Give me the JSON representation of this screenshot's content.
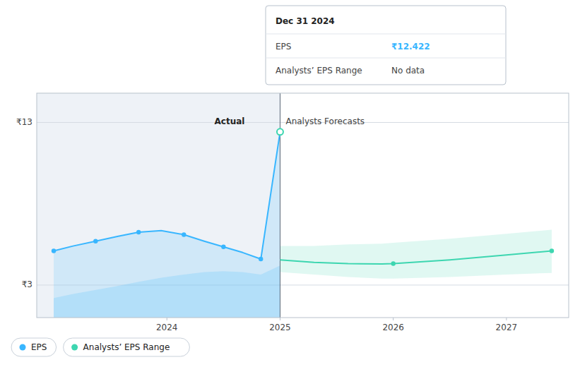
{
  "chart_data": {
    "type": "line",
    "xlim": [
      2022.85,
      2027.55
    ],
    "xticks": [
      2024,
      2025,
      2026,
      2027
    ],
    "ylim": [
      1.0,
      14.8
    ],
    "yticks": [
      {
        "value": 3,
        "label": "₹3"
      },
      {
        "value": 13,
        "label": "₹13"
      }
    ],
    "grid": true,
    "legend": "bottom",
    "divider_x": 2025.0,
    "annotations": [
      "Actual",
      "Analysts Forecasts"
    ],
    "peak": {
      "x": 2025.0,
      "value": 12.422
    },
    "tooltip": {
      "title": "Dec 31 2024",
      "rows": [
        {
          "label": "EPS",
          "value": "₹12.422"
        },
        {
          "label": "Analysts’ EPS Range",
          "value": "No data"
        }
      ]
    },
    "series": [
      {
        "name": "EPS",
        "color": "#38b6ff",
        "x": [
          2023.0,
          2023.17,
          2023.37,
          2023.57,
          2023.75,
          2023.95,
          2024.15,
          2024.33,
          2024.5,
          2024.67,
          2024.83,
          2025.0
        ],
        "values": [
          5.1,
          5.4,
          5.7,
          6.0,
          6.25,
          6.35,
          6.1,
          5.7,
          5.35,
          5.0,
          4.6,
          12.422
        ],
        "lower": [
          2.2,
          2.45,
          2.7,
          2.95,
          3.2,
          3.45,
          3.65,
          3.8,
          3.85,
          3.8,
          3.65,
          4.2
        ],
        "markers_x": [
          2023.0,
          2023.37,
          2023.75,
          2024.15,
          2024.5,
          2024.83
        ],
        "markers_values": [
          5.1,
          5.7,
          6.25,
          6.1,
          5.35,
          4.6
        ]
      },
      {
        "name": "Analysts’ EPS Range",
        "color": "#3dd6b0",
        "x": [
          2025.0,
          2025.3,
          2025.6,
          2025.9,
          2026.0,
          2026.5,
          2027.0,
          2027.4
        ],
        "values": [
          4.55,
          4.4,
          4.32,
          4.3,
          4.32,
          4.55,
          4.85,
          5.1
        ],
        "lower": [
          3.8,
          3.65,
          3.5,
          3.4,
          3.4,
          3.5,
          3.65,
          3.75
        ],
        "upper": [
          5.4,
          5.4,
          5.5,
          5.55,
          5.6,
          5.85,
          6.15,
          6.4
        ],
        "markers_x": [
          2026.0,
          2027.4
        ],
        "markers_values": [
          4.32,
          5.1
        ]
      }
    ]
  }
}
